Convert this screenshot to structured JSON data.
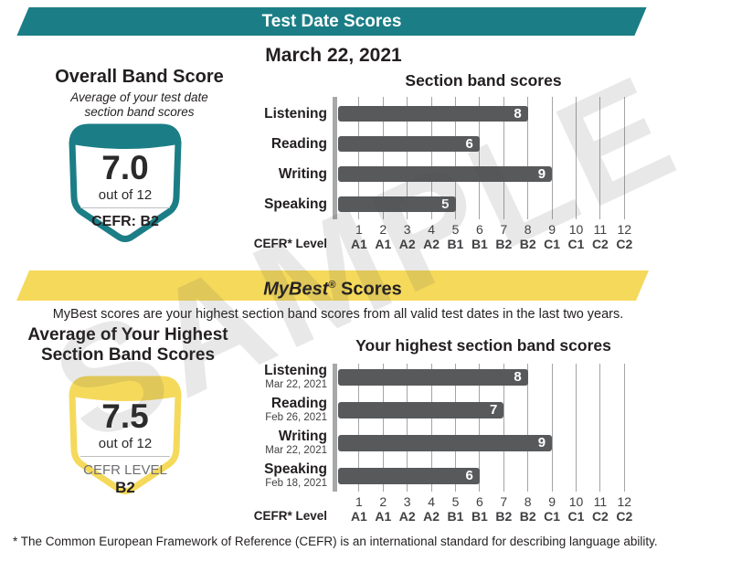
{
  "page": {
    "banner_test_date": "Test Date Scores",
    "test_date": "March 22, 2021",
    "banner_mybest_brand": "MyBest",
    "banner_mybest_reg": "®",
    "banner_mybest_rest": " Scores",
    "mybest_description": "MyBest scores are your highest section band scores from all valid test dates in the last two years.",
    "footnote": "* The Common European Framework of Reference (CEFR) is an international standard for describing language ability.",
    "watermark": "SAMPLE"
  },
  "overall_band_score": {
    "title": "Overall Band Score",
    "subtitle_line1": "Average of your test date",
    "subtitle_line2": "section band scores",
    "score": "7.0",
    "out_of": "out of 12",
    "cefr": "CEFR: B2"
  },
  "highest_average": {
    "title_line1": "Average of Your Highest",
    "title_line2": "Section Band Scores",
    "score": "7.5",
    "out_of": "out of 12",
    "cefr_label": "CEFR LEVEL",
    "cefr_value": "B2"
  },
  "colors": {
    "teal": "#1B7E86",
    "yellow": "#F5D95B",
    "bar_gray": "#58595B",
    "axis_gray": "#A7A8AA",
    "grid_gray": "#A3A4A6",
    "text_dark": "#231F20"
  },
  "chart_data": [
    {
      "type": "bar",
      "orientation": "horizontal",
      "title": "Section band scores",
      "categories": [
        "Listening",
        "Reading",
        "Writing",
        "Speaking"
      ],
      "values": [
        8,
        6,
        9,
        5
      ],
      "xlim": [
        0,
        12
      ],
      "x_ticks": [
        1,
        2,
        3,
        4,
        5,
        6,
        7,
        8,
        9,
        10,
        11,
        12
      ],
      "x_tick_cefr": [
        "A1",
        "A1",
        "A2",
        "A2",
        "B1",
        "B1",
        "B2",
        "B2",
        "C1",
        "C1",
        "C2",
        "C2"
      ],
      "axis_label": "CEFR* Level",
      "bar_color": "#58595B",
      "grid_color": "#A3A4A6",
      "axis_color": "#A7A8AA",
      "value_label_color": "#FFFFFF",
      "grid": true
    },
    {
      "type": "bar",
      "orientation": "horizontal",
      "title": "Your highest section band scores",
      "categories": [
        "Listening",
        "Reading",
        "Writing",
        "Speaking"
      ],
      "dates": [
        "Mar 22, 2021",
        "Feb 26, 2021",
        "Mar 22, 2021",
        "Feb 18, 2021"
      ],
      "values": [
        8,
        7,
        9,
        6
      ],
      "xlim": [
        0,
        12
      ],
      "x_ticks": [
        1,
        2,
        3,
        4,
        5,
        6,
        7,
        8,
        9,
        10,
        11,
        12
      ],
      "x_tick_cefr": [
        "A1",
        "A1",
        "A2",
        "A2",
        "B1",
        "B1",
        "B2",
        "B2",
        "C1",
        "C1",
        "C2",
        "C2"
      ],
      "axis_label": "CEFR* Level",
      "bar_color": "#58595B",
      "grid_color": "#A3A4A6",
      "axis_color": "#A7A8AA",
      "value_label_color": "#FFFFFF",
      "grid": true
    }
  ]
}
